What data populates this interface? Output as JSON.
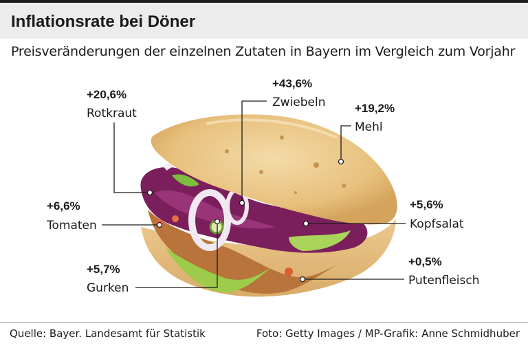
{
  "header": {
    "title": "Inflationsrate bei Döner",
    "subtitle": "Preisveränderungen der einzelnen Zutaten in Bayern im Vergleich zum Vorjahr"
  },
  "footer": {
    "source": "Quelle: Bayer. Landesamt für Statistik",
    "credit": "Foto: Getty Images / MP-Grafik: Anne Schmidhuber"
  },
  "colors": {
    "header_bg": "#ececec",
    "text": "#1a1a1a",
    "bread": "#e9c88e",
    "red_cabbage": "#7a1f5c",
    "lettuce": "#9ccc4a",
    "meat": "#b8743a"
  },
  "chart_data": {
    "type": "table",
    "title": "Inflationsrate bei Döner",
    "subtitle": "Preisveränderungen der einzelnen Zutaten in Bayern im Vergleich zum Vorjahr",
    "unit": "%",
    "items": [
      {
        "name": "Rotkraut",
        "value": 20.6,
        "label": "+20,6%"
      },
      {
        "name": "Zwiebeln",
        "value": 43.6,
        "label": "+43,6%"
      },
      {
        "name": "Mehl",
        "value": 19.2,
        "label": "+19,2%"
      },
      {
        "name": "Tomaten",
        "value": 6.6,
        "label": "+6,6%"
      },
      {
        "name": "Kopfsalat",
        "value": 5.6,
        "label": "+5,6%"
      },
      {
        "name": "Gurken",
        "value": 5.7,
        "label": "+5,7%"
      },
      {
        "name": "Putenfleisch",
        "value": 0.5,
        "label": "+0,5%"
      }
    ]
  }
}
